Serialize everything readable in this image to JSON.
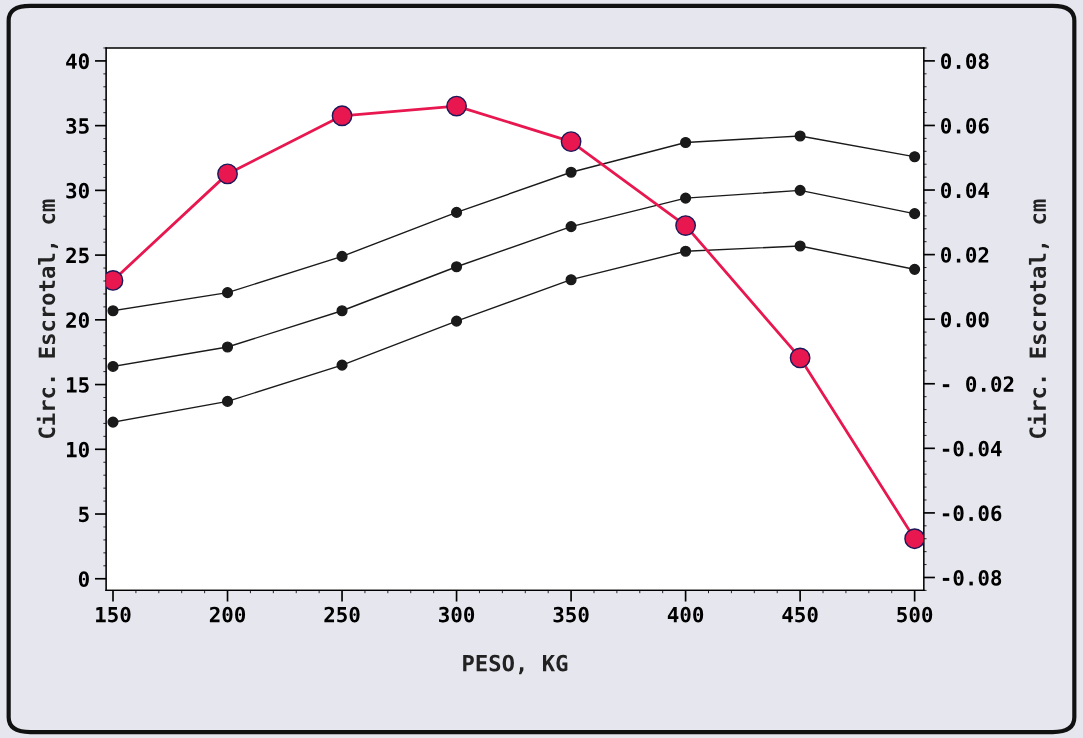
{
  "chart_data": {
    "type": "line",
    "xlabel": "PESO, KG",
    "ylabel": "Circ. Escrotal, cm",
    "y2label": "Circ. Escrotal, cm",
    "x": [
      150,
      200,
      250,
      300,
      350,
      400,
      450,
      500
    ],
    "series": [
      {
        "color": "#1a1a1a",
        "marker": "circle",
        "values": [
          20.7,
          22.1,
          24.9,
          28.3,
          31.4,
          33.7,
          34.2,
          32.6
        ]
      },
      {
        "color": "#1a1a1a",
        "marker": "circle",
        "values": [
          16.4,
          17.9,
          20.7,
          24.1,
          27.2,
          29.4,
          30.0,
          28.2
        ]
      },
      {
        "color": "#1a1a1a",
        "marker": "circle",
        "values": [
          12.1,
          13.7,
          16.5,
          19.9,
          23.1,
          25.3,
          25.7,
          23.9
        ]
      },
      {
        "color": "#e8174f",
        "marker": "circle",
        "axis": "y2",
        "values": [
          0.012,
          0.045,
          0.063,
          0.066,
          0.055,
          0.029,
          -0.012,
          -0.068
        ]
      }
    ],
    "xlim": [
      147,
      504
    ],
    "xticks": [
      150,
      200,
      250,
      300,
      350,
      400,
      450,
      500
    ],
    "ylim": [
      -0.9,
      41
    ],
    "yticks": [
      0,
      5,
      10,
      15,
      20,
      25,
      30,
      35,
      40
    ],
    "y2lim": [
      -0.084,
      0.084
    ],
    "y2ticks": [
      {
        "value": -0.08,
        "label": "-0.08"
      },
      {
        "value": -0.06,
        "label": "-0.06"
      },
      {
        "value": -0.04,
        "label": "-0.04"
      },
      {
        "value": -0.02,
        "label": "- 0.02"
      },
      {
        "value": 0,
        "label": "0.00"
      },
      {
        "value": 0.02,
        "label": "0.02"
      },
      {
        "value": 0.04,
        "label": "0.04"
      },
      {
        "value": 0.06,
        "label": "0.06"
      },
      {
        "value": 0.08,
        "label": "0.08"
      }
    ],
    "grid": false,
    "legend": false
  }
}
